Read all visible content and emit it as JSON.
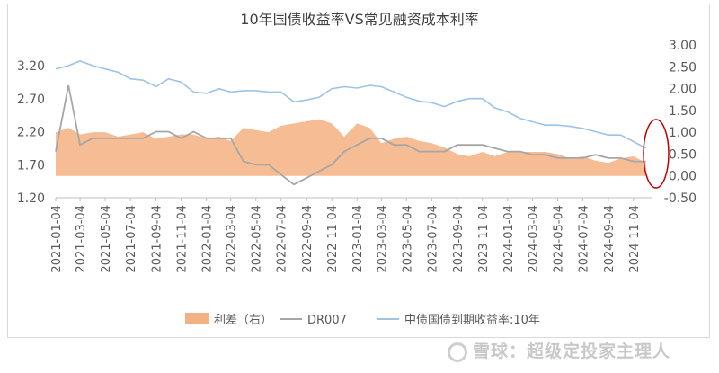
{
  "chart_data": {
    "type": "line",
    "title": "10年国债收益率VS常见融资成本利率",
    "left_axis": {
      "ticks": [
        "3.20",
        "2.70",
        "2.20",
        "1.70",
        "1.20"
      ],
      "range": [
        1.2,
        3.2
      ]
    },
    "right_axis": {
      "ticks": [
        "3.00",
        "2.50",
        "2.00",
        "1.50",
        "1.00",
        "0.50",
        "0.00",
        "-0.50"
      ],
      "range": [
        -0.5,
        3.0
      ]
    },
    "x_ticks": [
      "2021-01-04",
      "2021-03-04",
      "2021-05-04",
      "2021-07-04",
      "2021-09-04",
      "2021-11-04",
      "2022-01-04",
      "2022-03-04",
      "2022-05-04",
      "2022-07-04",
      "2022-09-04",
      "2022-11-04",
      "2023-01-04",
      "2023-03-04",
      "2023-05-04",
      "2023-07-04",
      "2023-09-04",
      "2023-11-04",
      "2024-01-04",
      "2024-03-04",
      "2024-05-04",
      "2024-07-04",
      "2024-09-04",
      "2024-11-04"
    ],
    "series": [
      {
        "name": "利差（右）",
        "axis": "right",
        "kind": "area",
        "color": "#f4b183",
        "x": [
          "2021-01-04",
          "2021-02-04",
          "2021-03-04",
          "2021-04-04",
          "2021-05-04",
          "2021-06-04",
          "2021-07-04",
          "2021-08-04",
          "2021-09-04",
          "2021-10-04",
          "2021-11-04",
          "2021-12-04",
          "2022-01-04",
          "2022-02-04",
          "2022-03-04",
          "2022-04-04",
          "2022-05-04",
          "2022-06-04",
          "2022-07-04",
          "2022-08-04",
          "2022-09-04",
          "2022-10-04",
          "2022-11-04",
          "2022-12-04",
          "2023-01-04",
          "2023-02-04",
          "2023-03-04",
          "2023-04-04",
          "2023-05-04",
          "2023-06-04",
          "2023-07-04",
          "2023-08-04",
          "2023-09-04",
          "2023-10-04",
          "2023-11-04",
          "2023-12-04",
          "2024-01-04",
          "2024-02-04",
          "2024-03-04",
          "2024-04-04",
          "2024-05-04",
          "2024-06-04",
          "2024-07-04",
          "2024-08-04",
          "2024-09-04",
          "2024-10-04",
          "2024-11-04",
          "2024-12-04"
        ],
        "values": [
          1.0,
          1.1,
          0.95,
          1.0,
          1.0,
          0.9,
          0.95,
          1.0,
          0.85,
          0.9,
          0.95,
          0.95,
          0.85,
          0.9,
          0.8,
          1.1,
          1.05,
          1.0,
          1.15,
          1.2,
          1.25,
          1.3,
          1.2,
          0.9,
          1.2,
          1.1,
          0.75,
          0.85,
          0.9,
          0.8,
          0.75,
          0.65,
          0.5,
          0.45,
          0.55,
          0.45,
          0.55,
          0.55,
          0.55,
          0.55,
          0.5,
          0.4,
          0.45,
          0.35,
          0.3,
          0.4,
          0.45,
          0.3
        ]
      },
      {
        "name": "DR007",
        "axis": "left",
        "kind": "line",
        "color": "#a6a6a6",
        "x": [
          "2021-01-04",
          "2021-02-04",
          "2021-03-04",
          "2021-04-04",
          "2021-05-04",
          "2021-06-04",
          "2021-07-04",
          "2021-08-04",
          "2021-09-04",
          "2021-10-04",
          "2021-11-04",
          "2021-12-04",
          "2022-01-04",
          "2022-02-04",
          "2022-03-04",
          "2022-04-04",
          "2022-05-04",
          "2022-06-04",
          "2022-07-04",
          "2022-08-04",
          "2022-09-04",
          "2022-10-04",
          "2022-11-04",
          "2022-12-04",
          "2023-01-04",
          "2023-02-04",
          "2023-03-04",
          "2023-04-04",
          "2023-05-04",
          "2023-06-04",
          "2023-07-04",
          "2023-08-04",
          "2023-09-04",
          "2023-10-04",
          "2023-11-04",
          "2023-12-04",
          "2024-01-04",
          "2024-02-04",
          "2024-03-04",
          "2024-04-04",
          "2024-05-04",
          "2024-06-04",
          "2024-07-04",
          "2024-08-04",
          "2024-09-04",
          "2024-10-04",
          "2024-11-04",
          "2024-12-04"
        ],
        "values": [
          1.9,
          2.9,
          2.0,
          2.1,
          2.1,
          2.1,
          2.1,
          2.1,
          2.2,
          2.2,
          2.1,
          2.2,
          2.1,
          2.1,
          2.1,
          1.75,
          1.7,
          1.7,
          1.55,
          1.4,
          1.5,
          1.6,
          1.7,
          1.9,
          2.0,
          2.1,
          2.1,
          2.0,
          2.0,
          1.9,
          1.9,
          1.9,
          2.0,
          2.0,
          2.0,
          1.95,
          1.9,
          1.9,
          1.85,
          1.85,
          1.8,
          1.8,
          1.8,
          1.85,
          1.8,
          1.8,
          1.75,
          1.75
        ]
      },
      {
        "name": "中债国债到期收益率:10年",
        "axis": "left",
        "kind": "line",
        "color": "#9dc3e6",
        "x": [
          "2021-01-04",
          "2021-02-04",
          "2021-03-04",
          "2021-04-04",
          "2021-05-04",
          "2021-06-04",
          "2021-07-04",
          "2021-08-04",
          "2021-09-04",
          "2021-10-04",
          "2021-11-04",
          "2021-12-04",
          "2022-01-04",
          "2022-02-04",
          "2022-03-04",
          "2022-04-04",
          "2022-05-04",
          "2022-06-04",
          "2022-07-04",
          "2022-08-04",
          "2022-09-04",
          "2022-10-04",
          "2022-11-04",
          "2022-12-04",
          "2023-01-04",
          "2023-02-04",
          "2023-03-04",
          "2023-04-04",
          "2023-05-04",
          "2023-06-04",
          "2023-07-04",
          "2023-08-04",
          "2023-09-04",
          "2023-10-04",
          "2023-11-04",
          "2023-12-04",
          "2024-01-04",
          "2024-02-04",
          "2024-03-04",
          "2024-04-04",
          "2024-05-04",
          "2024-06-04",
          "2024-07-04",
          "2024-08-04",
          "2024-09-04",
          "2024-10-04",
          "2024-11-04",
          "2024-12-04"
        ],
        "values": [
          3.15,
          3.2,
          3.27,
          3.2,
          3.15,
          3.1,
          3.0,
          2.98,
          2.88,
          3.0,
          2.95,
          2.8,
          2.78,
          2.85,
          2.8,
          2.82,
          2.82,
          2.8,
          2.8,
          2.65,
          2.68,
          2.72,
          2.85,
          2.88,
          2.86,
          2.9,
          2.88,
          2.8,
          2.72,
          2.66,
          2.64,
          2.58,
          2.66,
          2.7,
          2.7,
          2.56,
          2.5,
          2.4,
          2.35,
          2.3,
          2.3,
          2.28,
          2.25,
          2.2,
          2.15,
          2.15,
          2.05,
          1.95
        ]
      }
    ],
    "grid": false,
    "legend_position": "bottom"
  },
  "watermark": {
    "text": "雪球：超级定投家主理人"
  }
}
